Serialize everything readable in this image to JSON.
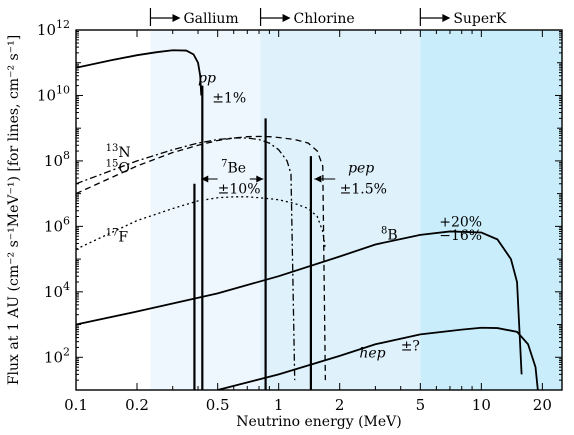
{
  "chart_data": {
    "type": "line",
    "xlabel": "Neutrino energy (MeV)",
    "ylabel": "Flux at 1 AU (cm⁻² s⁻¹MeV⁻¹) [for lines, cm⁻² s⁻¹]",
    "x_scale": "log",
    "y_scale": "log",
    "xlim": [
      0.1,
      25
    ],
    "ylim": [
      10,
      1000000000000
    ],
    "x_ticks": [
      {
        "v": 0.1,
        "label": "0.1"
      },
      {
        "v": 0.2,
        "label": "0.2"
      },
      {
        "v": 0.5,
        "label": "0.5"
      },
      {
        "v": 1,
        "label": "1"
      },
      {
        "v": 2,
        "label": "2"
      },
      {
        "v": 5,
        "label": "5"
      },
      {
        "v": 10,
        "label": "10"
      },
      {
        "v": 20,
        "label": "20"
      }
    ],
    "y_ticks": [
      {
        "v": 100,
        "base": "10",
        "exp": "2"
      },
      {
        "v": 10000,
        "base": "10",
        "exp": "4"
      },
      {
        "v": 1000000,
        "base": "10",
        "exp": "6"
      },
      {
        "v": 100000000,
        "base": "10",
        "exp": "8"
      },
      {
        "v": 10000000000,
        "base": "10",
        "exp": "10"
      },
      {
        "v": 1000000000000,
        "base": "10",
        "exp": "12"
      }
    ],
    "detector_bands": [
      {
        "name": "Gallium",
        "threshold": 0.233,
        "color": "#eef7fd"
      },
      {
        "name": "Chlorine",
        "threshold": 0.814,
        "color": "#dff1fb"
      },
      {
        "name": "SuperK",
        "threshold": 5.0,
        "color": "#c9edfa"
      }
    ],
    "series": [
      {
        "name": "pp",
        "style": "solid",
        "points": [
          [
            0.1,
            70000000000
          ],
          [
            0.15,
            120000000000
          ],
          [
            0.2,
            170000000000
          ],
          [
            0.25,
            210000000000
          ],
          [
            0.3,
            240000000000
          ],
          [
            0.35,
            235000000000
          ],
          [
            0.38,
            180000000000
          ],
          [
            0.4,
            100000000000
          ],
          [
            0.41,
            40000000000
          ],
          [
            0.415,
            10000000000
          ]
        ]
      },
      {
        "name": "13N",
        "style": "dashdot",
        "points": [
          [
            0.1,
            20000000
          ],
          [
            0.2,
            100000000
          ],
          [
            0.3,
            220000000
          ],
          [
            0.4,
            350000000
          ],
          [
            0.5,
            450000000
          ],
          [
            0.6,
            500000000
          ],
          [
            0.7,
            500000000
          ],
          [
            0.8,
            450000000
          ],
          [
            0.9,
            350000000
          ],
          [
            1.0,
            220000000
          ],
          [
            1.1,
            100000000
          ],
          [
            1.15,
            40000000
          ],
          [
            1.2,
            20
          ]
        ]
      },
      {
        "name": "15O",
        "style": "dashed",
        "points": [
          [
            0.1,
            10000000
          ],
          [
            0.2,
            70000000
          ],
          [
            0.3,
            180000000
          ],
          [
            0.4,
            300000000
          ],
          [
            0.5,
            420000000
          ],
          [
            0.6,
            500000000
          ],
          [
            0.7,
            550000000
          ],
          [
            0.8,
            560000000
          ],
          [
            0.9,
            550000000
          ],
          [
            1.0,
            520000000
          ],
          [
            1.2,
            450000000
          ],
          [
            1.4,
            350000000
          ],
          [
            1.55,
            200000000
          ],
          [
            1.65,
            70000000
          ],
          [
            1.7,
            20
          ]
        ]
      },
      {
        "name": "17F",
        "style": "dotted",
        "points": [
          [
            0.1,
            200000
          ],
          [
            0.2,
            1500000
          ],
          [
            0.3,
            3500000
          ],
          [
            0.4,
            6000000
          ],
          [
            0.5,
            7500000
          ],
          [
            0.6,
            8000000
          ],
          [
            0.7,
            8000000
          ],
          [
            0.8,
            7500000
          ],
          [
            0.9,
            7000000
          ],
          [
            1.0,
            6500000
          ],
          [
            1.2,
            5000000
          ],
          [
            1.4,
            3500000
          ],
          [
            1.55,
            2000000
          ],
          [
            1.65,
            700000
          ],
          [
            1.7,
            200000
          ]
        ]
      },
      {
        "name": "8B",
        "style": "solid",
        "points": [
          [
            0.1,
            1000
          ],
          [
            0.2,
            2500
          ],
          [
            0.5,
            9000
          ],
          [
            1,
            30000
          ],
          [
            2,
            120000
          ],
          [
            3,
            280000
          ],
          [
            5,
            550000
          ],
          [
            7,
            700000
          ],
          [
            10,
            650000
          ],
          [
            12,
            400000
          ],
          [
            14,
            100000
          ],
          [
            15,
            20000
          ],
          [
            15.8,
            30
          ]
        ]
      },
      {
        "name": "hep",
        "style": "solid",
        "points": [
          [
            0.5,
            10
          ],
          [
            1,
            30
          ],
          [
            2,
            110
          ],
          [
            3,
            250
          ],
          [
            5,
            500
          ],
          [
            8,
            700
          ],
          [
            10,
            800
          ],
          [
            12,
            780
          ],
          [
            15,
            600
          ],
          [
            17,
            250
          ],
          [
            18.5,
            50
          ],
          [
            19,
            10
          ]
        ]
      }
    ],
    "lines": [
      {
        "name": "7Be 0.384",
        "energy": 0.384,
        "flux": 20000000
      },
      {
        "name": "7Be 0.862",
        "energy": 0.862,
        "flux": 2000000000
      },
      {
        "name": "pep",
        "energy": 1.442,
        "flux": 140000000
      },
      {
        "name": "pp-line",
        "energy": 0.42,
        "flux": 20000000000
      }
    ],
    "annotations": [
      {
        "text": "pp",
        "italic": true,
        "x": 0.4,
        "y": 25000000000
      },
      {
        "text": "±1%",
        "x": 0.47,
        "y": 6000000000
      },
      {
        "text": "13N",
        "sup": "13",
        "base": "N",
        "x": 0.14,
        "y": 130000000
      },
      {
        "text": "15O",
        "sup": "15",
        "base": "O",
        "x": 0.14,
        "y": 45000000
      },
      {
        "text": "7Be",
        "sup": "7",
        "base": "Be",
        "x": 0.52,
        "y": 45000000
      },
      {
        "text": "±10%",
        "x": 0.5,
        "y": 10000000
      },
      {
        "text": "pep",
        "italic": true,
        "x": 2.2,
        "y": 45000000
      },
      {
        "text": "±1.5%",
        "x": 2.0,
        "y": 10000000
      },
      {
        "text": "17F",
        "sup": "17",
        "base": "F",
        "x": 0.14,
        "y": 350000
      },
      {
        "text": "8B",
        "sup": "8",
        "base": "B",
        "x": 3.2,
        "y": 400000
      },
      {
        "text": "+20%",
        "x": 6.2,
        "y": 1000000
      },
      {
        "text": "−16%",
        "x": 6.2,
        "y": 380000
      },
      {
        "text": "hep",
        "italic": true,
        "x": 2.5,
        "y": 100
      },
      {
        "text": "±?",
        "x": 4.0,
        "y": 160
      }
    ]
  }
}
